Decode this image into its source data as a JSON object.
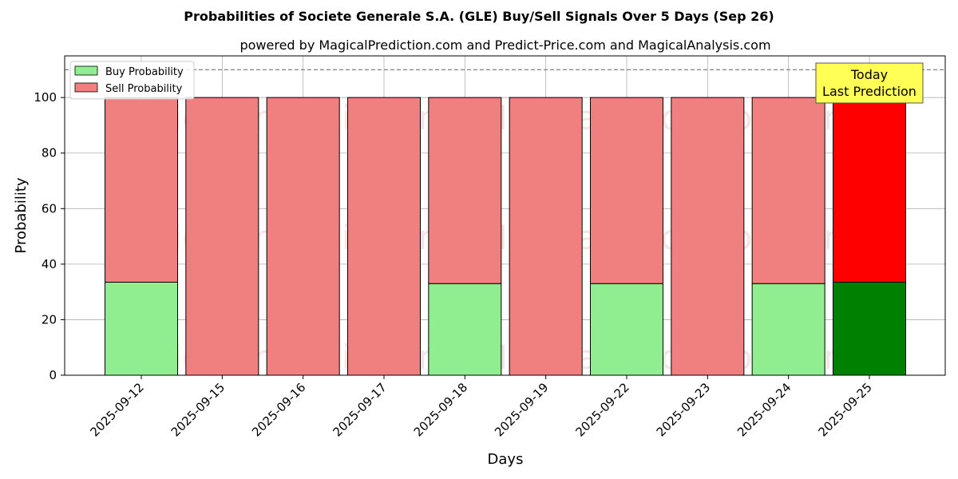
{
  "chart_data": {
    "type": "bar",
    "title": "Probabilities of Societe Generale S.A. (GLE) Buy/Sell Signals Over 5 Days (Sep 26)",
    "subtitle": "powered by MagicalPrediction.com and Predict-Price.com and MagicalAnalysis.com",
    "xlabel": "Days",
    "ylabel": "Probability",
    "ylim": [
      0,
      115
    ],
    "yticks": [
      0,
      20,
      40,
      60,
      80,
      100
    ],
    "grid": true,
    "legend_position": "top-left",
    "categories": [
      "2025-09-12",
      "2025-09-15",
      "2025-09-16",
      "2025-09-17",
      "2025-09-18",
      "2025-09-19",
      "2025-09-22",
      "2025-09-23",
      "2025-09-24",
      "2025-09-25"
    ],
    "stacked": true,
    "series": [
      {
        "name": "Buy Probability",
        "values": [
          33.5,
          0,
          0,
          0,
          33,
          0,
          33,
          0,
          33,
          33.5
        ],
        "color": "#90ee90",
        "highlight_color": "#008000"
      },
      {
        "name": "Sell Probability",
        "values": [
          66.5,
          100,
          100,
          100,
          67,
          100,
          67,
          100,
          67,
          66.5
        ],
        "color": "#f08080",
        "highlight_color": "#ff0000"
      }
    ],
    "highlight_index": 9,
    "reference_line": {
      "y": 110,
      "style": "dashed",
      "color": "#808080"
    },
    "annotation": {
      "lines": [
        "Today",
        "Last Prediction"
      ],
      "background": "#ffff55"
    },
    "watermarks": [
      "MagicalAnalysis.com",
      "MagicalPrediction.com"
    ]
  }
}
